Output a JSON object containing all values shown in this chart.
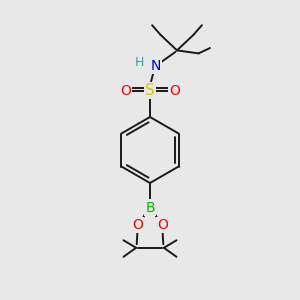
{
  "bg_color": "#e8e8e8",
  "bond_color": "#1a1a1a",
  "bond_width": 1.4,
  "atom_colors": {
    "S": "#cccc00",
    "O": "#ff0000",
    "N": "#0000cc",
    "H": "#4a9999",
    "B": "#00bb00",
    "C": "#1a1a1a"
  },
  "figsize": [
    3.0,
    3.0
  ],
  "dpi": 100
}
